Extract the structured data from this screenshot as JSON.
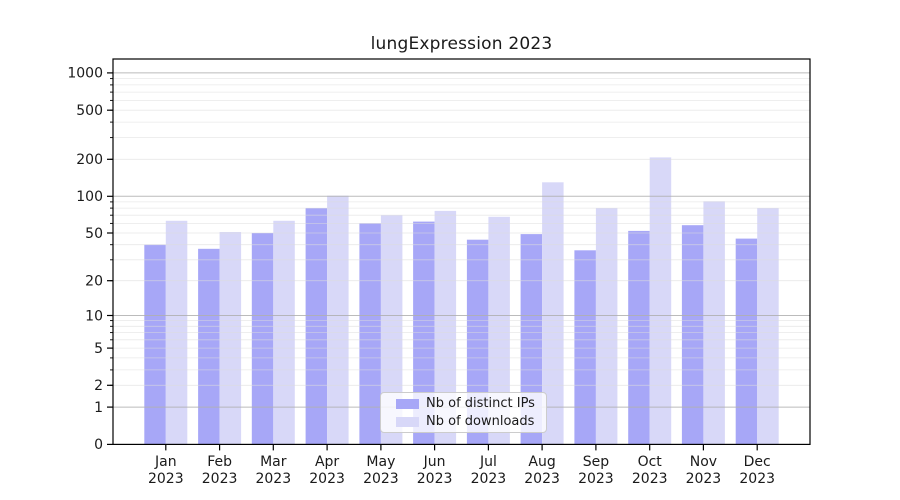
{
  "title": "lungExpression 2023",
  "chart_data": {
    "type": "bar",
    "title": "lungExpression 2023",
    "scale": "log10(1+x)",
    "categories": [
      "Jan 2023",
      "Feb 2023",
      "Mar 2023",
      "Apr 2023",
      "May 2023",
      "Jun 2023",
      "Jul 2023",
      "Aug 2023",
      "Sep 2023",
      "Oct 2023",
      "Nov 2023",
      "Dec 2023"
    ],
    "series": [
      {
        "name": "Nb of distinct IPs",
        "color": "#a7a7f7",
        "values": [
          40,
          37,
          50,
          80,
          60,
          62,
          44,
          49,
          36,
          52,
          58,
          45
        ]
      },
      {
        "name": "Nb of downloads",
        "color": "#d8d8f8",
        "values": [
          63,
          51,
          63,
          101,
          70,
          76,
          68,
          130,
          80,
          207,
          91,
          80
        ]
      }
    ],
    "yticks": [
      0,
      1,
      2,
      5,
      10,
      20,
      50,
      100,
      200,
      500,
      1000
    ],
    "ylim": [
      0,
      1300
    ],
    "xlabel": "",
    "ylabel": "",
    "grid": "horizontal; major gridlines at 1, 10, 100, 1000; minor gridlines at 2-9 per decade; drawn over bars",
    "legend_position": "bottom-center-inside"
  },
  "legend": {
    "items": [
      {
        "label": "Nb of distinct IPs",
        "color": "#a7a7f7"
      },
      {
        "label": "Nb of downloads",
        "color": "#d8d8f8"
      }
    ]
  },
  "colors": {
    "background": "#ffffff",
    "axis": "#000000",
    "major_grid": "#b0b0b0",
    "minor_grid": "#dcdcdc",
    "text": "#1a1a1a"
  }
}
